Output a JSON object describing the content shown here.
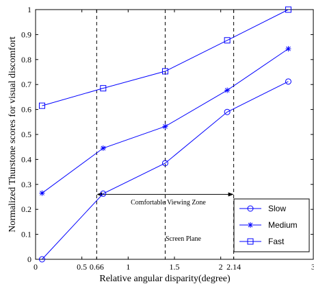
{
  "chart_data": {
    "type": "line",
    "title": "",
    "xlabel": "Relative angular disparity(degree)",
    "ylabel": "Normalized Thurstone scores for visual discomfort",
    "xlim": [
      0,
      3
    ],
    "ylim": [
      0,
      1
    ],
    "xticks": [
      0,
      0.5,
      0.66,
      1,
      1.5,
      2,
      2.14,
      3
    ],
    "xtick_labels": [
      "0",
      "0.5",
      "0.66",
      "1",
      "1.5",
      "2",
      "2.14",
      "3"
    ],
    "yticks": [
      0,
      0.1,
      0.2,
      0.3,
      0.4,
      0.5,
      0.6,
      0.7,
      0.8,
      0.9,
      1
    ],
    "ytick_labels": [
      "0",
      "0.1",
      "0.2",
      "0.3",
      "0.4",
      "0.5",
      "0.6",
      "0.7",
      "0.8",
      "0.9",
      "1"
    ],
    "grid": false,
    "legend_position": "bottom-right",
    "x": [
      0.07,
      0.73,
      1.4,
      2.07,
      2.73
    ],
    "series": [
      {
        "name": "Slow",
        "marker": "circle",
        "values": [
          0.0,
          0.263,
          0.385,
          0.59,
          0.712
        ]
      },
      {
        "name": "Medium",
        "marker": "star",
        "values": [
          0.265,
          0.445,
          0.532,
          0.677,
          0.843
        ]
      },
      {
        "name": "Fast",
        "marker": "square",
        "values": [
          0.615,
          0.685,
          0.753,
          0.877,
          1.0
        ]
      }
    ],
    "vlines": [
      0.66,
      1.4,
      2.14
    ],
    "annotations": {
      "zone_label": "Comfortable Viewing Zone",
      "zone_range": [
        0.66,
        2.14
      ],
      "zone_y": 0.26,
      "screen_label": "Screen Plane"
    },
    "colors": {
      "line": "#0000ff",
      "axis": "#000000",
      "guides": "#000000"
    }
  }
}
